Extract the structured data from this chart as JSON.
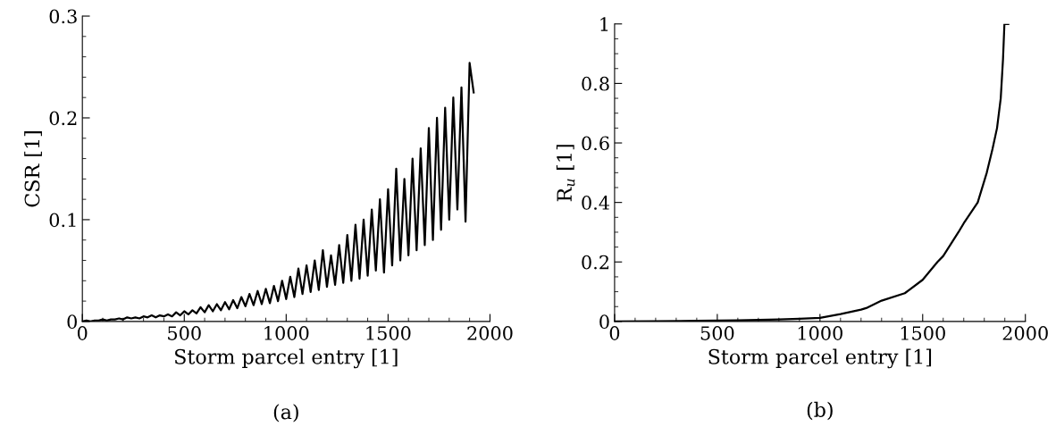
{
  "chart_data": [
    {
      "type": "line",
      "xlabel": "Storm parcel entry [1]",
      "ylabel": "CSR [1]",
      "annotations": [
        "(a)"
      ],
      "xlim": [
        0,
        2000
      ],
      "xticks": [
        0,
        500,
        1000,
        1500,
        2000
      ],
      "ylim": [
        0,
        0.3
      ],
      "yticks": [
        0,
        0.1,
        0.2,
        0.3
      ],
      "grid": false,
      "legend": false,
      "series": [
        {
          "color": "#000000",
          "x": [
            0,
            20,
            40,
            60,
            80,
            100,
            120,
            140,
            160,
            180,
            200,
            220,
            240,
            260,
            280,
            300,
            320,
            340,
            360,
            380,
            400,
            420,
            440,
            460,
            480,
            500,
            520,
            540,
            560,
            580,
            600,
            620,
            640,
            660,
            680,
            700,
            720,
            740,
            760,
            780,
            800,
            820,
            840,
            860,
            880,
            900,
            920,
            940,
            960,
            980,
            1000,
            1020,
            1040,
            1060,
            1080,
            1100,
            1120,
            1140,
            1160,
            1180,
            1200,
            1220,
            1240,
            1260,
            1280,
            1300,
            1320,
            1340,
            1360,
            1380,
            1400,
            1420,
            1440,
            1460,
            1480,
            1500,
            1520,
            1540,
            1560,
            1580,
            1600,
            1620,
            1640,
            1660,
            1680,
            1700,
            1720,
            1740,
            1760,
            1780,
            1800,
            1820,
            1840,
            1860,
            1880,
            1900,
            1920
          ],
          "values": [
            0,
            0.001,
            0,
            0.001,
            0.001,
            0.002,
            0.001,
            0.002,
            0.002,
            0.003,
            0.002,
            0.004,
            0.003,
            0.004,
            0.003,
            0.005,
            0.004,
            0.006,
            0.004,
            0.006,
            0.005,
            0.007,
            0.005,
            0.009,
            0.006,
            0.01,
            0.007,
            0.011,
            0.008,
            0.014,
            0.009,
            0.016,
            0.01,
            0.017,
            0.011,
            0.019,
            0.012,
            0.021,
            0.013,
            0.024,
            0.015,
            0.027,
            0.016,
            0.03,
            0.017,
            0.032,
            0.018,
            0.035,
            0.02,
            0.04,
            0.022,
            0.044,
            0.024,
            0.052,
            0.027,
            0.055,
            0.029,
            0.06,
            0.031,
            0.07,
            0.034,
            0.065,
            0.036,
            0.075,
            0.038,
            0.085,
            0.04,
            0.095,
            0.042,
            0.1,
            0.045,
            0.11,
            0.05,
            0.12,
            0.048,
            0.13,
            0.055,
            0.15,
            0.06,
            0.14,
            0.065,
            0.16,
            0.07,
            0.17,
            0.075,
            0.19,
            0.08,
            0.2,
            0.09,
            0.21,
            0.1,
            0.22,
            0.11,
            0.23,
            0.098,
            0.254,
            0.225
          ]
        }
      ]
    },
    {
      "type": "line",
      "xlabel": "Storm parcel entry [1]",
      "ylabel": "R$_{u}$ [1]",
      "annotations": [
        "(b)"
      ],
      "xlim": [
        0,
        2000
      ],
      "xticks": [
        0,
        500,
        1000,
        1500,
        2000
      ],
      "ylim": [
        0,
        1
      ],
      "yticks": [
        0,
        0.2,
        0.4,
        0.6,
        0.8,
        1
      ],
      "grid": false,
      "legend": false,
      "series": [
        {
          "color": "#000000",
          "x": [
            0,
            200,
            400,
            600,
            800,
            900,
            1000,
            1100,
            1200,
            1225,
            1300,
            1413,
            1500,
            1572,
            1600,
            1674,
            1700,
            1768,
            1812,
            1840,
            1862,
            1880,
            1891,
            1898,
            1917
          ],
          "values": [
            0,
            0.001,
            0.002,
            0.004,
            0.007,
            0.009,
            0.012,
            0.025,
            0.04,
            0.045,
            0.07,
            0.095,
            0.14,
            0.2,
            0.22,
            0.3,
            0.33,
            0.4,
            0.5,
            0.58,
            0.65,
            0.75,
            0.88,
            1,
            1
          ]
        }
      ]
    }
  ]
}
